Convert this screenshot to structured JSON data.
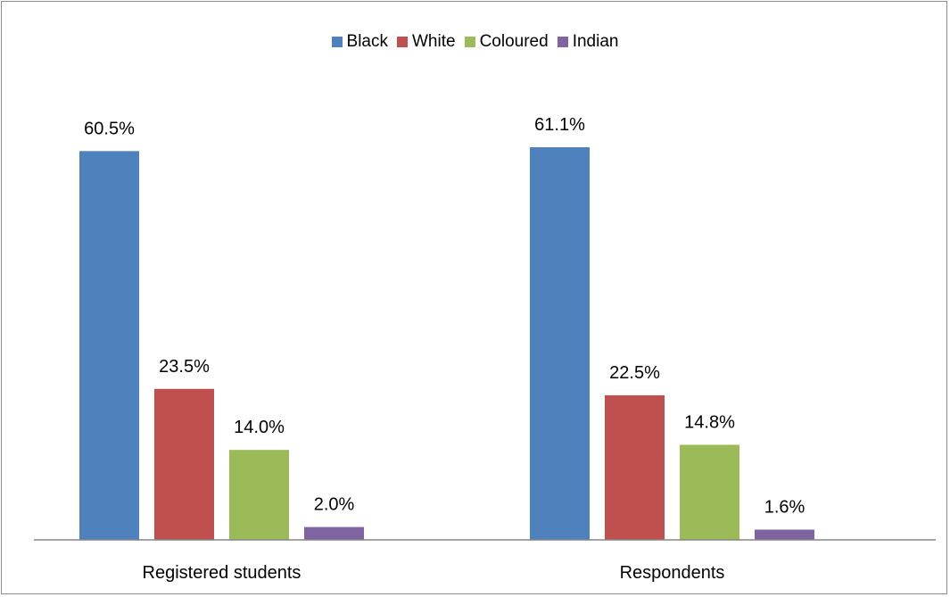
{
  "chart_data": {
    "type": "bar",
    "categories": [
      "Registered students",
      "Respondents"
    ],
    "series": [
      {
        "name": "Black",
        "values": [
          60.5,
          61.1
        ],
        "labels": [
          "60.5%",
          "61.1%"
        ],
        "color": "#4f81bd"
      },
      {
        "name": "White",
        "values": [
          23.5,
          22.5
        ],
        "labels": [
          "23.5%",
          "22.5%"
        ],
        "color": "#c0504d"
      },
      {
        "name": "Coloured",
        "values": [
          14.0,
          14.8
        ],
        "labels": [
          "14.0%",
          "14.8%"
        ],
        "color": "#9bbb59"
      },
      {
        "name": "Indian",
        "values": [
          2.0,
          1.6
        ],
        "labels": [
          "2.0%",
          "1.6%"
        ],
        "color": "#8064a2"
      }
    ],
    "ylim": [
      0,
      61.1
    ],
    "grid": false,
    "legend_position": "top"
  }
}
